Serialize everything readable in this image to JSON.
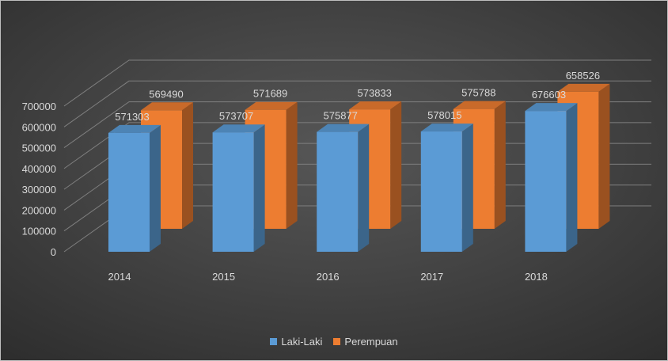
{
  "chart_data": {
    "type": "bar",
    "style": "3d-clustered-column",
    "title": "",
    "xlabel": "",
    "ylabel": "",
    "categories": [
      "2014",
      "2015",
      "2016",
      "2017",
      "2018"
    ],
    "y_ticks": [
      "0",
      "100000",
      "200000",
      "300000",
      "400000",
      "500000",
      "600000",
      "700000"
    ],
    "ylim": [
      0,
      700000
    ],
    "grid": true,
    "legend_position": "bottom",
    "series": [
      {
        "name": "Laki-Laki",
        "color": "#5b9bd5",
        "values": [
          571303,
          573707,
          575877,
          578015,
          676603
        ]
      },
      {
        "name": "Perempuan",
        "color": "#ed7d31",
        "values": [
          569490,
          571689,
          573833,
          575788,
          658526
        ]
      }
    ]
  }
}
